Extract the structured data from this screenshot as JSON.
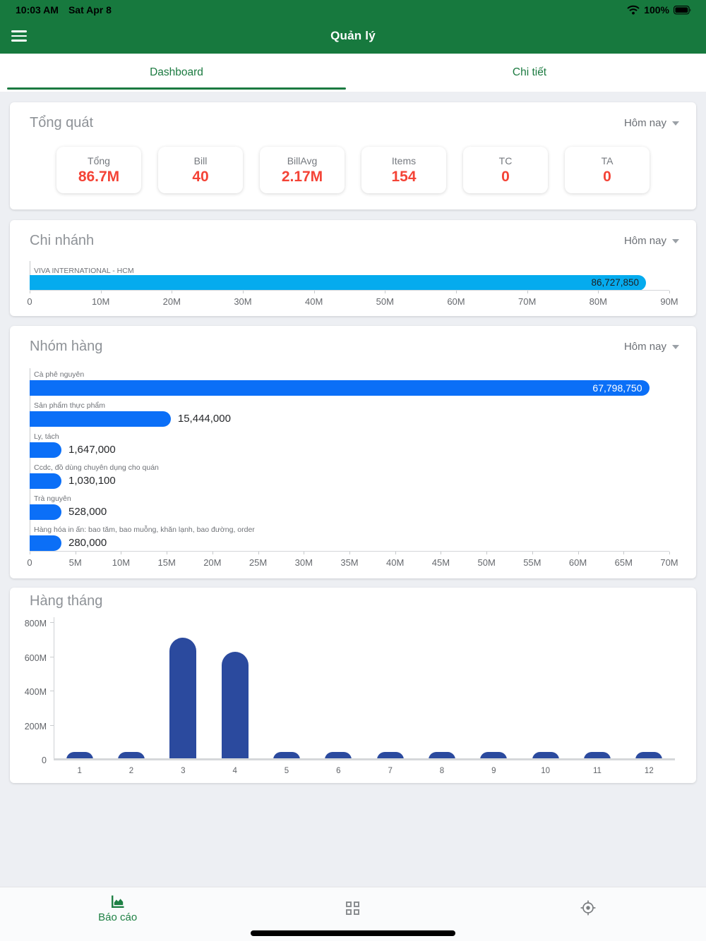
{
  "status_bar": {
    "time": "10:03 AM",
    "date": "Sat Apr 8",
    "battery": "100%"
  },
  "header": {
    "title": "Quản lý"
  },
  "tabs": {
    "dashboard": "Dashboard",
    "detail": "Chi tiết"
  },
  "overview": {
    "title": "Tổng quát",
    "period": "Hôm nay",
    "stats": [
      {
        "label": "Tổng",
        "value": "86.7M"
      },
      {
        "label": "Bill",
        "value": "40"
      },
      {
        "label": "BillAvg",
        "value": "2.17M"
      },
      {
        "label": "Items",
        "value": "154"
      },
      {
        "label": "TC",
        "value": "0"
      },
      {
        "label": "TA",
        "value": "0"
      }
    ]
  },
  "branch": {
    "title": "Chi nhánh",
    "period": "Hôm nay",
    "chart_data": {
      "type": "bar",
      "orientation": "horizontal",
      "categories": [
        "VIVA INTERNATIONAL - HCM"
      ],
      "values": [
        86727850
      ],
      "value_labels": [
        "86,727,850"
      ],
      "xticks": [
        "0",
        "10M",
        "20M",
        "30M",
        "40M",
        "50M",
        "60M",
        "70M",
        "80M",
        "90M"
      ],
      "xmax": 90000000,
      "bar_color": "#05abee"
    }
  },
  "group": {
    "title": "Nhóm hàng",
    "period": "Hôm nay",
    "chart_data": {
      "type": "bar",
      "orientation": "horizontal",
      "categories": [
        "Cà phê nguyên",
        "Sản phẩm thực phẩm",
        "Ly, tách",
        "Ccdc, đồ dùng chuyên dụng cho quán",
        "Trà nguyên",
        "Hàng hóa in ấn: bao tăm, bao muỗng, khăn lạnh, bao đường, order"
      ],
      "values": [
        67798750,
        15444000,
        1647000,
        1030100,
        528000,
        280000
      ],
      "value_labels": [
        "67,798,750",
        "15,444,000",
        "1,647,000",
        "1,030,100",
        "528,000",
        "280,000"
      ],
      "xticks": [
        "0",
        "5M",
        "10M",
        "15M",
        "20M",
        "25M",
        "30M",
        "35M",
        "40M",
        "45M",
        "50M",
        "55M",
        "60M",
        "65M",
        "70M"
      ],
      "xmax": 70000000,
      "bar_color": "#0b6ff7"
    }
  },
  "monthly": {
    "title": "Hàng tháng",
    "chart_data": {
      "type": "bar",
      "orientation": "vertical",
      "categories": [
        "1",
        "2",
        "3",
        "4",
        "5",
        "6",
        "7",
        "8",
        "9",
        "10",
        "11",
        "12"
      ],
      "values": [
        40000000,
        40000000,
        715000000,
        630000000,
        40000000,
        40000000,
        40000000,
        40000000,
        40000000,
        40000000,
        40000000,
        40000000
      ],
      "yticks": [
        "0",
        "200M",
        "400M",
        "600M",
        "800M"
      ],
      "ymax": 800000000,
      "bar_color": "#2b4a9e"
    }
  },
  "bottom_nav": {
    "report_label": "Báo cáo",
    "items": [
      "area-chart",
      "grid",
      "gps"
    ]
  },
  "colors": {
    "header_green": "#17793e",
    "active_tab_green": "#1b7a40",
    "stat_value_red": "#f44336",
    "branch_bar": "#05abee",
    "group_bar": "#0b6ff7",
    "monthly_bar": "#2b4a9e"
  }
}
